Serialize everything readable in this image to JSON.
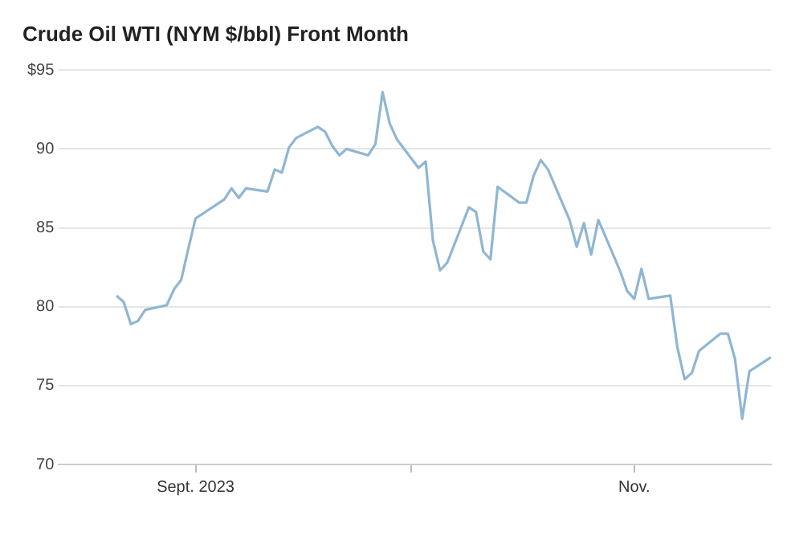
{
  "chart_data": {
    "type": "line",
    "title": "Crude Oil WTI (NYM $/bbl) Front Month",
    "x": [
      "2023-08-21",
      "2023-08-22",
      "2023-08-23",
      "2023-08-24",
      "2023-08-25",
      "2023-08-28",
      "2023-08-29",
      "2023-08-30",
      "2023-08-31",
      "2023-09-01",
      "2023-09-05",
      "2023-09-06",
      "2023-09-07",
      "2023-09-08",
      "2023-09-11",
      "2023-09-12",
      "2023-09-13",
      "2023-09-14",
      "2023-09-15",
      "2023-09-18",
      "2023-09-19",
      "2023-09-20",
      "2023-09-21",
      "2023-09-22",
      "2023-09-25",
      "2023-09-26",
      "2023-09-27",
      "2023-09-28",
      "2023-09-29",
      "2023-10-02",
      "2023-10-03",
      "2023-10-04",
      "2023-10-05",
      "2023-10-06",
      "2023-10-09",
      "2023-10-10",
      "2023-10-11",
      "2023-10-12",
      "2023-10-13",
      "2023-10-16",
      "2023-10-17",
      "2023-10-18",
      "2023-10-19",
      "2023-10-20",
      "2023-10-23",
      "2023-10-24",
      "2023-10-25",
      "2023-10-26",
      "2023-10-27",
      "2023-10-30",
      "2023-10-31",
      "2023-11-01",
      "2023-11-02",
      "2023-11-03",
      "2023-11-06",
      "2023-11-07",
      "2023-11-08",
      "2023-11-09",
      "2023-11-10",
      "2023-11-13",
      "2023-11-14",
      "2023-11-15",
      "2023-11-16",
      "2023-11-17",
      "2023-11-20"
    ],
    "series": [
      {
        "color": "#8fb6d2",
        "values": [
          80.7,
          80.3,
          78.9,
          79.1,
          79.8,
          80.1,
          81.1,
          81.7,
          83.7,
          85.6,
          86.8,
          87.5,
          86.9,
          87.5,
          87.3,
          88.7,
          88.5,
          90.1,
          90.7,
          91.4,
          91.1,
          90.2,
          89.6,
          90.0,
          89.6,
          90.3,
          93.6,
          91.6,
          90.6,
          88.8,
          89.2,
          84.2,
          82.3,
          82.8,
          86.3,
          86.0,
          83.5,
          83.0,
          87.6,
          86.6,
          86.6,
          88.3,
          89.3,
          88.7,
          85.5,
          83.8,
          85.3,
          83.3,
          85.5,
          82.3,
          81.0,
          80.5,
          82.4,
          80.5,
          80.7,
          77.4,
          75.4,
          75.8,
          77.2,
          78.3,
          78.3,
          76.7,
          72.9,
          75.9,
          76.8
        ]
      }
    ],
    "xlim": [
      "2023-08-13",
      "2023-11-20"
    ],
    "xticks": [
      {
        "value": "2023-09-01",
        "label": "Sept. 2023"
      },
      {
        "value": "2023-10-01",
        "label": null
      },
      {
        "value": "2023-11-01",
        "label": "Nov."
      }
    ],
    "ylim": [
      70,
      95
    ],
    "yticks": [
      70,
      75,
      80,
      85,
      90,
      {
        "value": 95,
        "label": "$95"
      }
    ],
    "grid": "y",
    "legend": false,
    "marker": "none",
    "line_style": "solid"
  }
}
